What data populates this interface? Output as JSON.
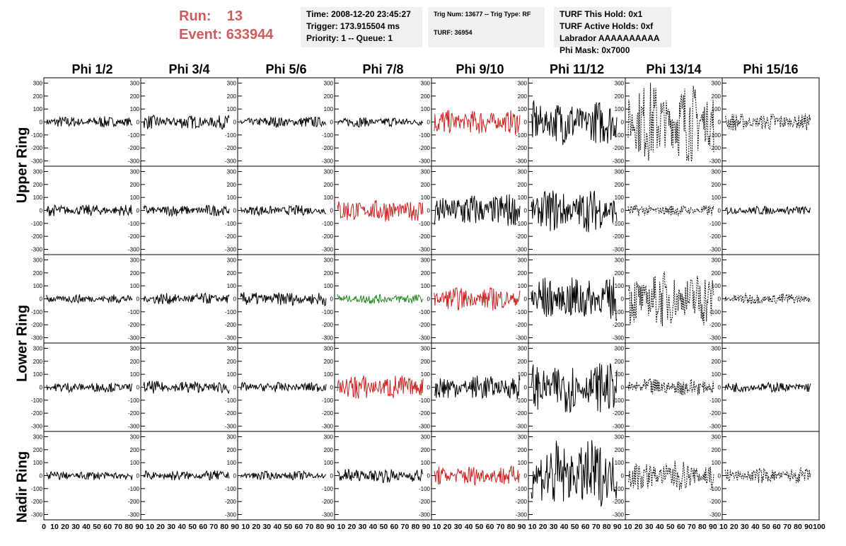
{
  "header": {
    "run_label": "Run:",
    "run_value": "13",
    "event_label": "Event:",
    "event_value": "633944",
    "accent_color": "#cd5c5c"
  },
  "time_panel": {
    "time": "Time: 2008-12-20 23:45:27",
    "trigger": "Trigger: 173.915504 ms",
    "priority": "Priority: 1 -- Queue: 1"
  },
  "trig_panel": {
    "trig": "Trig Num: 13677 -- Trig Type: RF",
    "turf": "TURF: 36954"
  },
  "turf_panel": {
    "this_hold": "TURF This Hold: 0x1",
    "active_holds": "TURF Active Holds: 0xf",
    "labrador": "Labrador AAAAAAAAAA",
    "phi_mask": "Phi Mask: 0x7000"
  },
  "chart_data": {
    "type": "line",
    "columns": [
      "Phi 1/2",
      "Phi 3/4",
      "Phi 5/6",
      "Phi 7/8",
      "Phi 9/10",
      "Phi 11/12",
      "Phi 13/14",
      "Phi 15/16"
    ],
    "ring_labels": [
      "Upper Ring",
      "Lower Ring",
      "Nadir Ring"
    ],
    "xlim": [
      0,
      100
    ],
    "ylim": [
      -330,
      330
    ],
    "y_ticks": [
      -300,
      -200,
      -100,
      0,
      100,
      200,
      300
    ],
    "y_tick_labels": [
      "-300",
      "-200",
      "-100",
      "0",
      "100",
      "200",
      "300"
    ],
    "x_tick_labels": [
      "0",
      "10",
      "20",
      "30",
      "40",
      "50",
      "60",
      "70",
      "80",
      "90",
      "10",
      "20",
      "30",
      "40",
      "50",
      "60",
      "70",
      "80",
      "90",
      "10",
      "20",
      "30",
      "40",
      "50",
      "60",
      "70",
      "80",
      "90",
      "10",
      "20",
      "30",
      "40",
      "50",
      "60",
      "70",
      "80",
      "90",
      "10",
      "20",
      "30",
      "40",
      "50",
      "60",
      "70",
      "80",
      "90",
      "10",
      "20",
      "30",
      "40",
      "50",
      "60",
      "70",
      "80",
      "90",
      "10",
      "20",
      "30",
      "40",
      "50",
      "60",
      "70",
      "80",
      "90",
      "10",
      "20",
      "30",
      "40",
      "50",
      "60",
      "70",
      "80",
      "90",
      "100"
    ],
    "colors": {
      "black": "#000000",
      "red": "#cc2222",
      "green": "#228822"
    },
    "rows": [
      {
        "amplitudes": [
          45,
          55,
          45,
          40,
          100,
          180,
          320,
          70
        ],
        "colors": [
          "black",
          "black",
          "black",
          "black",
          "red",
          "black",
          "black",
          "black"
        ],
        "dashed": [
          false,
          false,
          false,
          false,
          false,
          false,
          true,
          true
        ]
      },
      {
        "amplitudes": [
          45,
          45,
          40,
          90,
          140,
          170,
          45,
          35
        ],
        "colors": [
          "black",
          "black",
          "black",
          "red",
          "black",
          "black",
          "black",
          "black"
        ],
        "dashed": [
          false,
          false,
          false,
          false,
          false,
          false,
          true,
          false
        ]
      },
      {
        "amplitudes": [
          35,
          45,
          55,
          40,
          90,
          180,
          220,
          45
        ],
        "colors": [
          "black",
          "black",
          "black",
          "green",
          "red",
          "black",
          "black",
          "black"
        ],
        "dashed": [
          false,
          false,
          false,
          false,
          false,
          false,
          true,
          true
        ]
      },
      {
        "amplitudes": [
          40,
          50,
          40,
          100,
          100,
          200,
          70,
          40
        ],
        "colors": [
          "black",
          "black",
          "black",
          "red",
          "black",
          "black",
          "black",
          "black"
        ],
        "dashed": [
          false,
          false,
          false,
          false,
          false,
          false,
          true,
          false
        ]
      },
      {
        "amplitudes": [
          35,
          40,
          35,
          55,
          80,
          280,
          120,
          60
        ],
        "colors": [
          "black",
          "black",
          "black",
          "black",
          "red",
          "black",
          "black",
          "black"
        ],
        "dashed": [
          false,
          false,
          false,
          false,
          false,
          false,
          true,
          true
        ]
      }
    ]
  }
}
